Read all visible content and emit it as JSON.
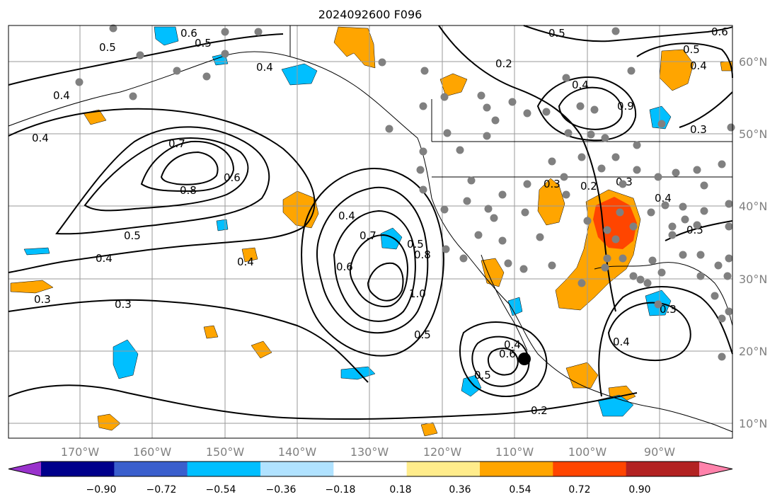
{
  "title": "2024092600 F096",
  "lon_labels": [
    "170°W",
    "160°W",
    "150°W",
    "140°W",
    "130°W",
    "120°W",
    "110°W",
    "100°W",
    "90°W"
  ],
  "lat_labels": [
    "60°N",
    "50°N",
    "40°N",
    "30°N",
    "20°N",
    "10°N"
  ],
  "colorbar": {
    "colors": [
      "#9932cc",
      "#00008b",
      "#3a5fcd",
      "#00bfff",
      "#b0e2ff",
      "#ffffff",
      "#ffec8b",
      "#ffa500",
      "#ff4500",
      "#b22222",
      "#ff82ab"
    ],
    "tick_labels": [
      "−0.90",
      "−0.72",
      "−0.54",
      "−0.36",
      "−0.18",
      "0.18",
      "0.36",
      "0.54",
      "0.72",
      "0.90"
    ]
  },
  "contour_labels": [
    "0.5",
    "0.6",
    "0.5",
    "0.4",
    "0.4",
    "0.4",
    "0.2",
    "0.5",
    "0.6",
    "0.5",
    "0.4",
    "0.4",
    "0.9",
    "0.3",
    "0.7",
    "0.6",
    "0.8",
    "0.5",
    "0.4",
    "0.3",
    "0.4",
    "0.3",
    "0.4",
    "0.7",
    "0.6",
    "0.5",
    "0.8",
    "1.0",
    "0.5",
    "0.5",
    "0.6",
    "0.4",
    "0.3",
    "0.2",
    "0.3",
    "0.2",
    "0.4",
    "0.5",
    "0.3",
    "0.4"
  ],
  "marker_colors": {
    "contour": "#000000",
    "station": "#808080",
    "storm": "#000000"
  }
}
